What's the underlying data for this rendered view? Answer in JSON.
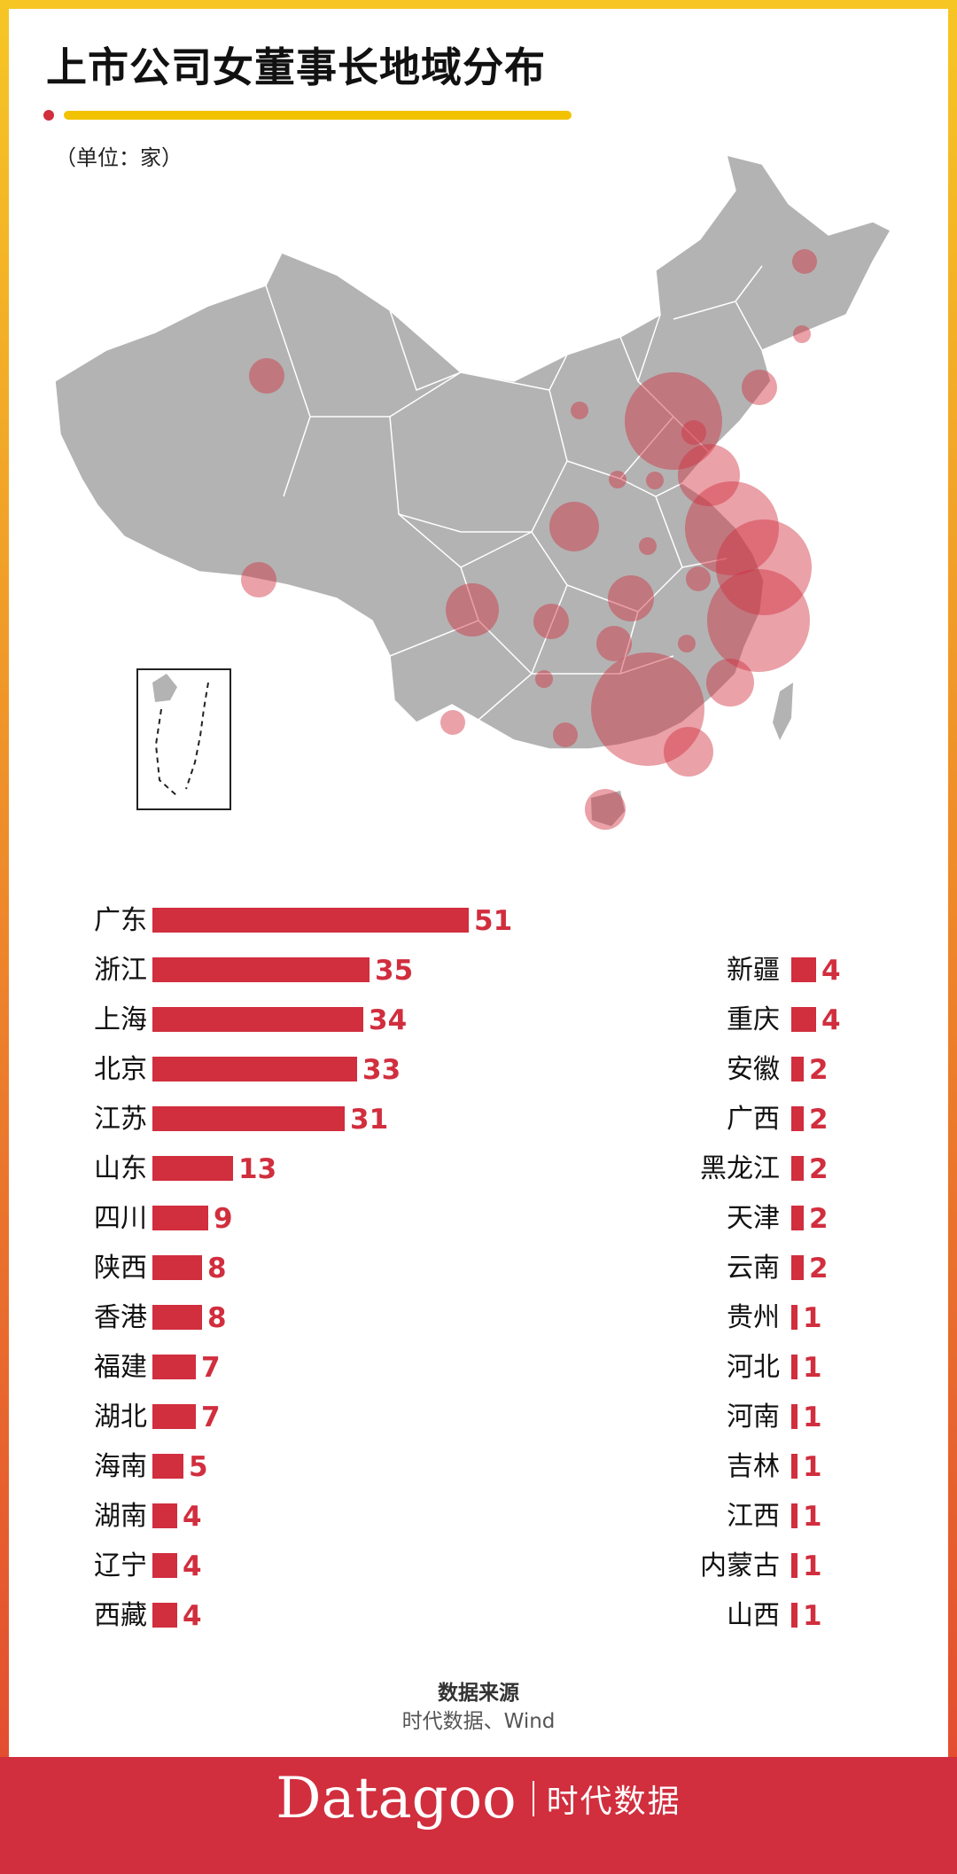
{
  "page": {
    "title": "上市公司女董事长地域分布",
    "unit": "（单位：家）",
    "source_title": "数据来源",
    "source_body": "时代数据、Wind",
    "brand_main": "Datagoo",
    "brand_sub": "时代数据",
    "accent_color": "#d12e3e",
    "underline_color": "#f2c200",
    "map_color": "#b3b3b3"
  },
  "chart_data": {
    "type": "bar",
    "orientation": "horizontal",
    "unit": "家",
    "bar_color": "#d12e3e",
    "categories": [
      "广东",
      "浙江",
      "上海",
      "北京",
      "江苏",
      "山东",
      "四川",
      "陕西",
      "香港",
      "福建",
      "湖北",
      "海南",
      "湖南",
      "辽宁",
      "西藏",
      "新疆",
      "重庆",
      "安徽",
      "广西",
      "黑龙江",
      "天津",
      "云南",
      "贵州",
      "河北",
      "河南",
      "吉林",
      "江西",
      "内蒙古",
      "山西"
    ],
    "values": [
      51,
      35,
      34,
      33,
      31,
      13,
      9,
      8,
      8,
      7,
      7,
      5,
      4,
      4,
      4,
      4,
      4,
      2,
      2,
      2,
      2,
      2,
      1,
      1,
      1,
      1,
      1,
      1,
      1
    ]
  }
}
